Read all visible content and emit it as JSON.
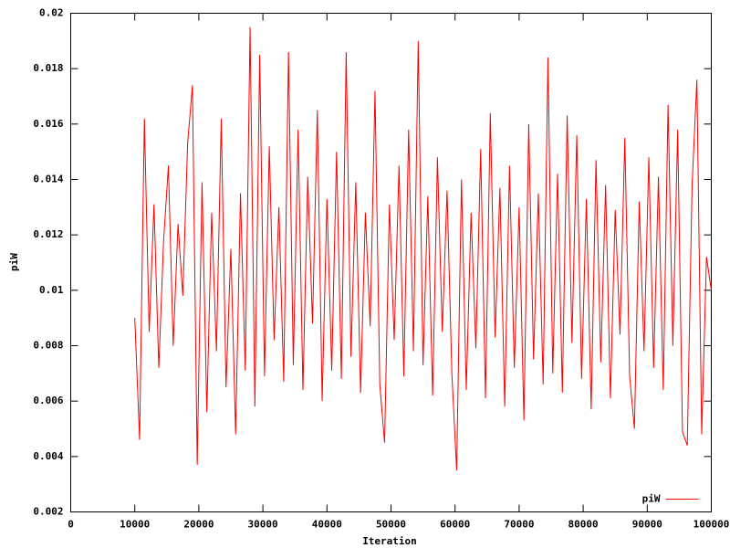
{
  "chart_data": {
    "type": "line",
    "xlabel": "Iteration",
    "ylabel": "piW",
    "x": [
      10000,
      10750,
      11500,
      12250,
      13000,
      13750,
      14500,
      15250,
      16000,
      16750,
      17500,
      18250,
      19000,
      19750,
      20500,
      21250,
      22000,
      22750,
      23500,
      24250,
      25000,
      25750,
      26500,
      27250,
      28000,
      28750,
      29500,
      30250,
      31000,
      31750,
      32500,
      33250,
      34000,
      34750,
      35500,
      36250,
      37000,
      37750,
      38500,
      39250,
      40000,
      40750,
      41500,
      42250,
      43000,
      43750,
      44500,
      45250,
      46000,
      46750,
      47500,
      48250,
      49000,
      49750,
      50500,
      51250,
      52000,
      52750,
      53500,
      54250,
      55000,
      55750,
      56500,
      57250,
      58000,
      58750,
      59500,
      60250,
      61000,
      61750,
      62500,
      63250,
      64000,
      64750,
      65500,
      66250,
      67000,
      67750,
      68500,
      69250,
      70000,
      70750,
      71500,
      72250,
      73000,
      73750,
      74500,
      75250,
      76000,
      76750,
      77500,
      78250,
      79000,
      79750,
      80500,
      81250,
      82000,
      82750,
      83500,
      84250,
      85000,
      85750,
      86500,
      87250,
      88000,
      88750,
      89500,
      90250,
      91000,
      91750,
      92500,
      93250,
      94000,
      94750,
      95500,
      96250,
      97000,
      97750,
      98500,
      99250,
      100000
    ],
    "series": [
      {
        "name": "piW",
        "color": "#ff0000",
        "values": [
          0.009,
          0.0046,
          0.0162,
          0.0085,
          0.0131,
          0.0072,
          0.0118,
          0.0145,
          0.008,
          0.0124,
          0.0098,
          0.0153,
          0.0174,
          0.0037,
          0.0139,
          0.0056,
          0.0128,
          0.0078,
          0.0162,
          0.0065,
          0.0115,
          0.0048,
          0.0135,
          0.0071,
          0.0195,
          0.0058,
          0.0185,
          0.0069,
          0.0152,
          0.0082,
          0.013,
          0.0067,
          0.0186,
          0.0073,
          0.0158,
          0.0064,
          0.0141,
          0.0088,
          0.0165,
          0.006,
          0.0133,
          0.0071,
          0.015,
          0.0068,
          0.0186,
          0.0076,
          0.0139,
          0.0063,
          0.0128,
          0.0087,
          0.0172,
          0.0066,
          0.0045,
          0.0131,
          0.0082,
          0.0145,
          0.0069,
          0.0158,
          0.0078,
          0.019,
          0.0073,
          0.0134,
          0.0062,
          0.0148,
          0.0085,
          0.0136,
          0.007,
          0.0035,
          0.014,
          0.0064,
          0.0128,
          0.0079,
          0.0151,
          0.0061,
          0.0164,
          0.0083,
          0.0137,
          0.0058,
          0.0145,
          0.0072,
          0.013,
          0.0053,
          0.016,
          0.0075,
          0.0135,
          0.0066,
          0.0184,
          0.007,
          0.0142,
          0.0063,
          0.0163,
          0.0081,
          0.0156,
          0.0068,
          0.0133,
          0.0057,
          0.0147,
          0.0074,
          0.0138,
          0.0061,
          0.0129,
          0.0084,
          0.0155,
          0.0069,
          0.005,
          0.0132,
          0.0078,
          0.0148,
          0.0072,
          0.0141,
          0.0064,
          0.0167,
          0.008,
          0.0158,
          0.0049,
          0.0044,
          0.0138,
          0.0176,
          0.0048,
          0.0112,
          0.01
        ]
      }
    ],
    "xlim": [
      0,
      100000
    ],
    "xticks": [
      0,
      10000,
      20000,
      30000,
      40000,
      50000,
      60000,
      70000,
      80000,
      90000,
      100000
    ],
    "ylim": [
      0.002,
      0.02
    ],
    "yticks": [
      0.002,
      0.004,
      0.006,
      0.008,
      0.01,
      0.012,
      0.014,
      0.016,
      0.018,
      0.02
    ],
    "grid": false,
    "legend": "bottom-right"
  }
}
